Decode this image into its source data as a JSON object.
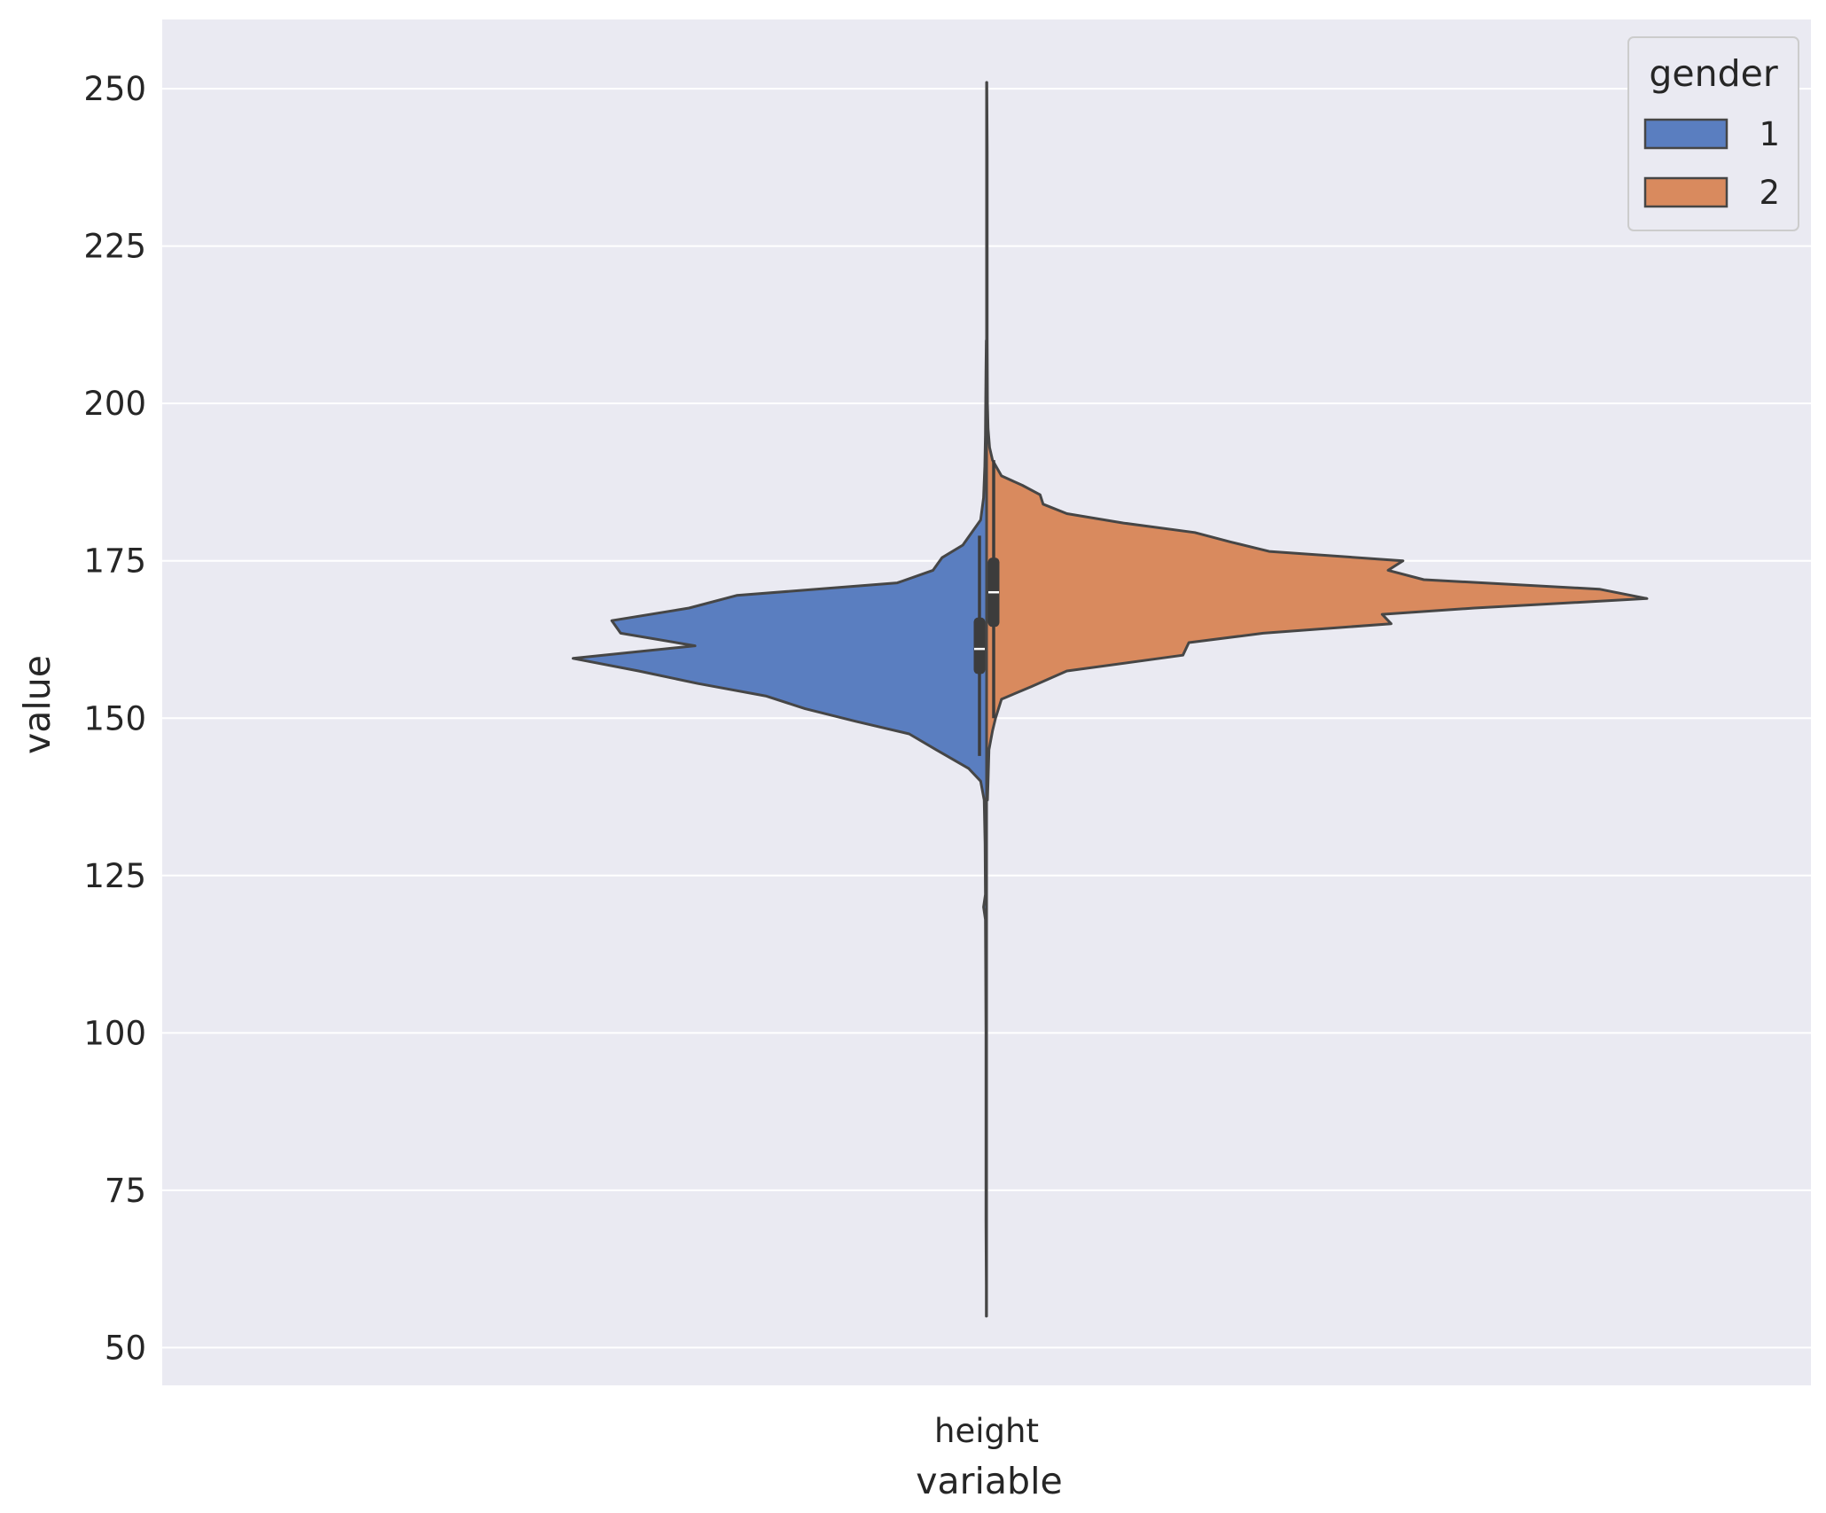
{
  "chart_data": {
    "type": "violin",
    "split": true,
    "xlabel": "variable",
    "ylabel": "value",
    "categories": [
      "height"
    ],
    "ylim": [
      44,
      261
    ],
    "yticks": [
      50,
      75,
      100,
      125,
      150,
      175,
      200,
      225,
      250
    ],
    "grid": true,
    "background": "#eaeaf2",
    "legend": {
      "title": "gender",
      "position": "top-right",
      "entries": [
        {
          "label": "1",
          "color": "#5a7ec0"
        },
        {
          "label": "2",
          "color": "#d98a5e"
        }
      ]
    },
    "series": [
      {
        "name": "1",
        "side": "left",
        "color": "#5a7ec0",
        "density": [
          [
            55,
            0.001
          ],
          [
            60,
            0.001
          ],
          [
            70,
            0.002
          ],
          [
            80,
            0.002
          ],
          [
            90,
            0.002
          ],
          [
            100,
            0.002
          ],
          [
            110,
            0.003
          ],
          [
            118,
            0.004
          ],
          [
            120,
            0.01
          ],
          [
            122,
            0.004
          ],
          [
            130,
            0.005
          ],
          [
            137,
            0.008
          ],
          [
            140,
            0.02
          ],
          [
            142,
            0.06
          ],
          [
            145,
            0.17
          ],
          [
            147.5,
            0.26
          ],
          [
            149.5,
            0.44
          ],
          [
            151.5,
            0.61
          ],
          [
            153.5,
            0.74
          ],
          [
            155.5,
            0.97
          ],
          [
            157.5,
            1.17
          ],
          [
            159.5,
            1.39
          ],
          [
            161.5,
            0.98
          ],
          [
            163.5,
            1.23
          ],
          [
            165.5,
            1.26
          ],
          [
            167.5,
            1.0
          ],
          [
            169.5,
            0.84
          ],
          [
            171.5,
            0.3
          ],
          [
            173.5,
            0.18
          ],
          [
            175.5,
            0.15
          ],
          [
            177.5,
            0.08
          ],
          [
            181.5,
            0.02
          ],
          [
            185,
            0.01
          ],
          [
            190,
            0.006
          ],
          [
            195,
            0.004
          ],
          [
            205,
            0.002
          ],
          [
            210,
            0.001
          ]
        ],
        "box": {
          "whisker_low": 144,
          "q1": 157,
          "median": 161,
          "q3": 166,
          "whisker_high": 179
        }
      },
      {
        "name": "2",
        "side": "right",
        "color": "#d98a5e",
        "density": [
          [
            137,
            0.003
          ],
          [
            140,
            0.005
          ],
          [
            145,
            0.008
          ],
          [
            148,
            0.02
          ],
          [
            150,
            0.03
          ],
          [
            153,
            0.05
          ],
          [
            155,
            0.15
          ],
          [
            157.5,
            0.27
          ],
          [
            160,
            0.66
          ],
          [
            162,
            0.68
          ],
          [
            163.5,
            0.93
          ],
          [
            165,
            1.36
          ],
          [
            166.5,
            1.33
          ],
          [
            167.5,
            1.64
          ],
          [
            169,
            2.22
          ],
          [
            170.5,
            2.06
          ],
          [
            172,
            1.47
          ],
          [
            173.5,
            1.35
          ],
          [
            175,
            1.4
          ],
          [
            176.5,
            0.95
          ],
          [
            178,
            0.82
          ],
          [
            179.5,
            0.7
          ],
          [
            181,
            0.46
          ],
          [
            182.5,
            0.27
          ],
          [
            184,
            0.19
          ],
          [
            185.5,
            0.18
          ],
          [
            187,
            0.12
          ],
          [
            188.5,
            0.05
          ],
          [
            191,
            0.02
          ],
          [
            193,
            0.01
          ],
          [
            196,
            0.005
          ],
          [
            200,
            0.003
          ],
          [
            210,
            0.002
          ],
          [
            220,
            0.002
          ],
          [
            230,
            0.002
          ],
          [
            240,
            0.002
          ],
          [
            251,
            0.001
          ]
        ],
        "box": {
          "whisker_low": 150,
          "q1": 164.5,
          "median": 170,
          "q3": 175.5,
          "whisker_high": 191
        }
      }
    ]
  }
}
